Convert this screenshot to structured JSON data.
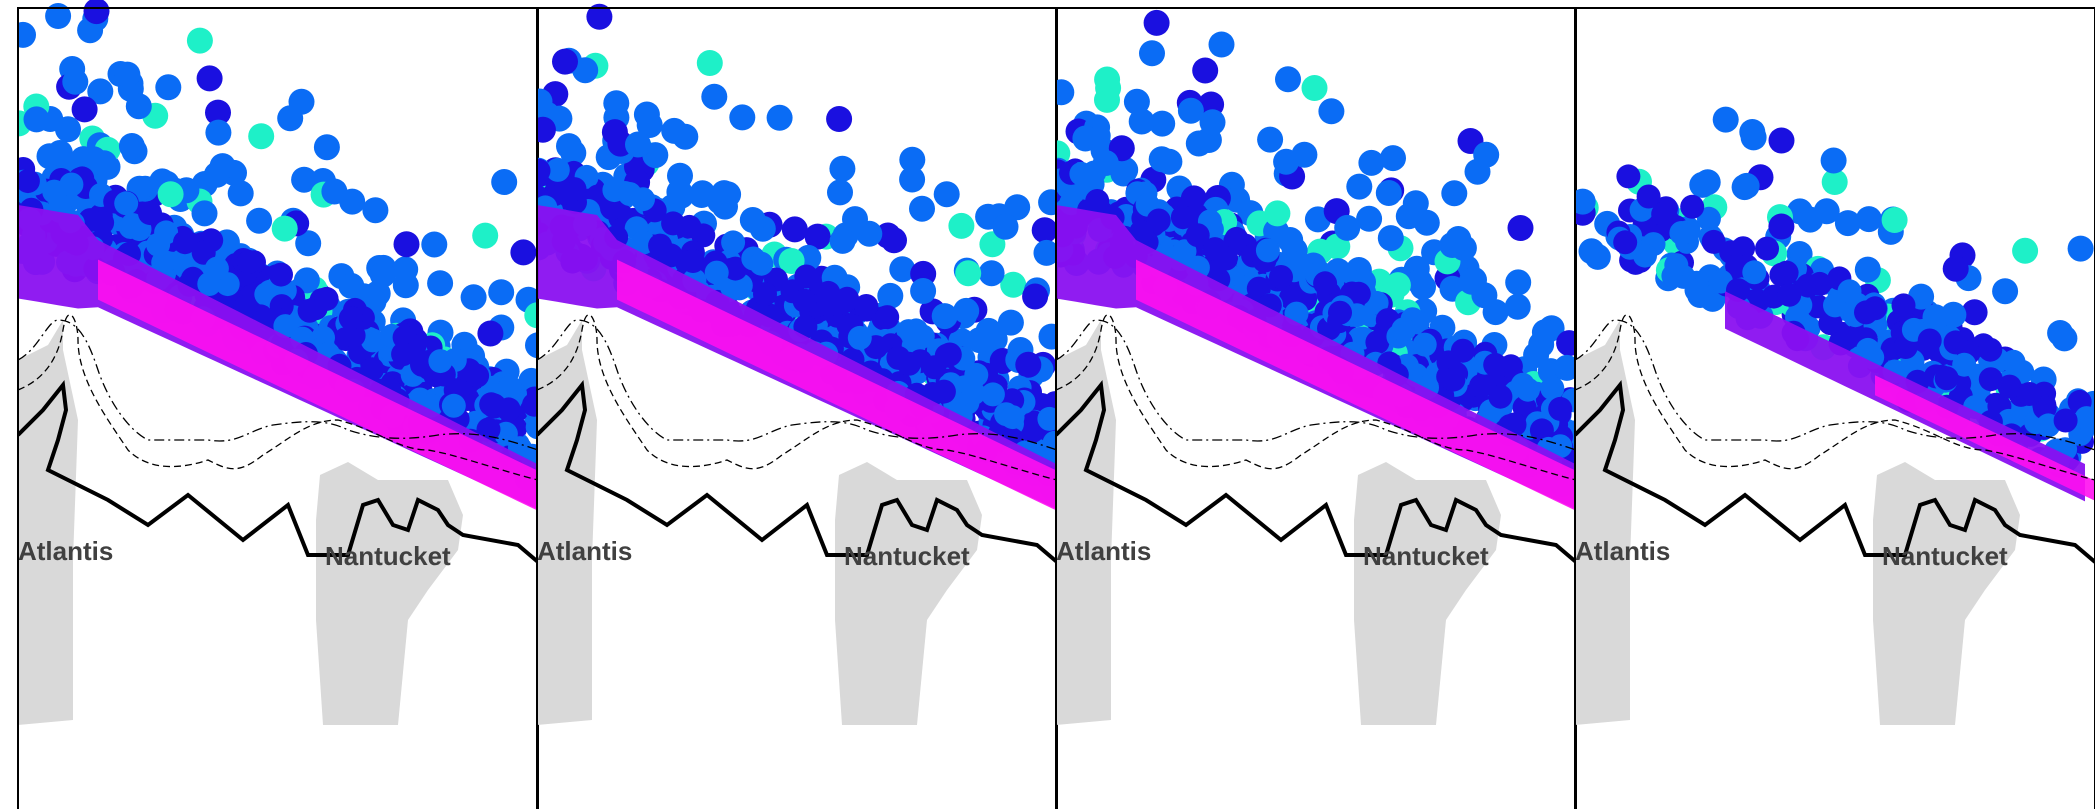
{
  "labels": {
    "left_area": "Atlantis",
    "right_area": "Nantucket"
  },
  "panels": [
    {
      "id": "panel-1",
      "density": "high"
    },
    {
      "id": "panel-2",
      "density": "high"
    },
    {
      "id": "panel-3",
      "density": "high"
    },
    {
      "id": "panel-4",
      "density": "low"
    }
  ],
  "legend_colors": {
    "land": "#d9d9d9",
    "scatter_blue": "#0a6cf5",
    "scatter_cyan": "#1ef0c8",
    "scatter_dark_blue": "#1a10e0",
    "density_violet": "#8a10f0",
    "density_magenta": "#ff10f0",
    "frame": "#000000"
  }
}
